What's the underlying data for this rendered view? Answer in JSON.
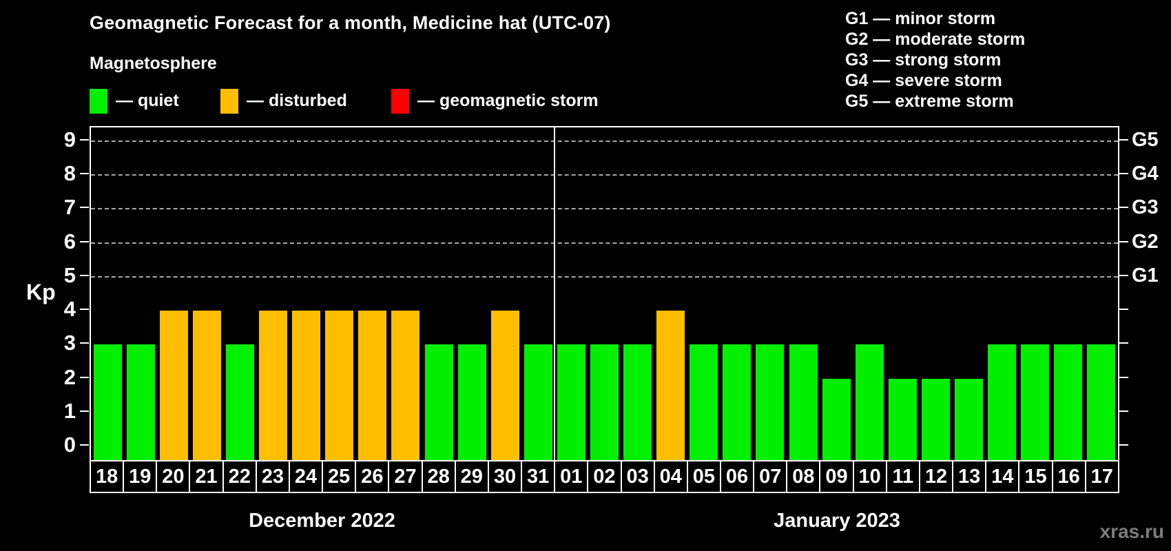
{
  "title": "Geomagnetic Forecast for a month, Medicine hat (UTC-07)",
  "subtitle": "Magnetosphere",
  "legend": {
    "items": [
      {
        "key": "quiet",
        "label": "— quiet",
        "color": "#00f000"
      },
      {
        "key": "disturbed",
        "label": "— disturbed",
        "color": "#ffbe00"
      },
      {
        "key": "storm",
        "label": "— geomagnetic storm",
        "color": "#ff0000"
      }
    ]
  },
  "storm_scale_legend": {
    "lines": [
      "G1 — minor storm",
      "G2 — moderate storm",
      "G3 — strong storm",
      "G4 — severe storm",
      "G5 — extreme storm"
    ]
  },
  "y_axis": {
    "label": "Kp",
    "ticks": [
      0,
      1,
      2,
      3,
      4,
      5,
      6,
      7,
      8,
      9
    ],
    "gridlines": [
      5,
      6,
      7,
      8,
      9
    ]
  },
  "right_axis": {
    "labels": [
      {
        "kp": 9,
        "text": "G5"
      },
      {
        "kp": 8,
        "text": "G4"
      },
      {
        "kp": 7,
        "text": "G3"
      },
      {
        "kp": 6,
        "text": "G2"
      },
      {
        "kp": 5,
        "text": "G1"
      }
    ]
  },
  "months": [
    {
      "name": "December 2022",
      "days": 14
    },
    {
      "name": "January 2023",
      "days": 17
    }
  ],
  "bars": [
    {
      "day": "18",
      "month": "December 2022",
      "kp": 3,
      "status": "quiet"
    },
    {
      "day": "19",
      "month": "December 2022",
      "kp": 3,
      "status": "quiet"
    },
    {
      "day": "20",
      "month": "December 2022",
      "kp": 4,
      "status": "disturbed"
    },
    {
      "day": "21",
      "month": "December 2022",
      "kp": 4,
      "status": "disturbed"
    },
    {
      "day": "22",
      "month": "December 2022",
      "kp": 3,
      "status": "quiet"
    },
    {
      "day": "23",
      "month": "December 2022",
      "kp": 4,
      "status": "disturbed"
    },
    {
      "day": "24",
      "month": "December 2022",
      "kp": 4,
      "status": "disturbed"
    },
    {
      "day": "25",
      "month": "December 2022",
      "kp": 4,
      "status": "disturbed"
    },
    {
      "day": "26",
      "month": "December 2022",
      "kp": 4,
      "status": "disturbed"
    },
    {
      "day": "27",
      "month": "December 2022",
      "kp": 4,
      "status": "disturbed"
    },
    {
      "day": "28",
      "month": "December 2022",
      "kp": 3,
      "status": "quiet"
    },
    {
      "day": "29",
      "month": "December 2022",
      "kp": 3,
      "status": "quiet"
    },
    {
      "day": "30",
      "month": "December 2022",
      "kp": 4,
      "status": "disturbed"
    },
    {
      "day": "31",
      "month": "December 2022",
      "kp": 3,
      "status": "quiet"
    },
    {
      "day": "01",
      "month": "January 2023",
      "kp": 3,
      "status": "quiet"
    },
    {
      "day": "02",
      "month": "January 2023",
      "kp": 3,
      "status": "quiet"
    },
    {
      "day": "03",
      "month": "January 2023",
      "kp": 3,
      "status": "quiet"
    },
    {
      "day": "04",
      "month": "January 2023",
      "kp": 4,
      "status": "disturbed"
    },
    {
      "day": "05",
      "month": "January 2023",
      "kp": 3,
      "status": "quiet"
    },
    {
      "day": "06",
      "month": "January 2023",
      "kp": 3,
      "status": "quiet"
    },
    {
      "day": "07",
      "month": "January 2023",
      "kp": 3,
      "status": "quiet"
    },
    {
      "day": "08",
      "month": "January 2023",
      "kp": 3,
      "status": "quiet"
    },
    {
      "day": "09",
      "month": "January 2023",
      "kp": 2,
      "status": "quiet"
    },
    {
      "day": "10",
      "month": "January 2023",
      "kp": 3,
      "status": "quiet"
    },
    {
      "day": "11",
      "month": "January 2023",
      "kp": 2,
      "status": "quiet"
    },
    {
      "day": "12",
      "month": "January 2023",
      "kp": 2,
      "status": "quiet"
    },
    {
      "day": "13",
      "month": "January 2023",
      "kp": 2,
      "status": "quiet"
    },
    {
      "day": "14",
      "month": "January 2023",
      "kp": 3,
      "status": "quiet"
    },
    {
      "day": "15",
      "month": "January 2023",
      "kp": 3,
      "status": "quiet"
    },
    {
      "day": "16",
      "month": "January 2023",
      "kp": 3,
      "status": "quiet"
    },
    {
      "day": "17",
      "month": "January 2023",
      "kp": 3,
      "status": "quiet"
    }
  ],
  "watermark": "xras.ru",
  "colors": {
    "background": "#000000",
    "axis": "#ffffff",
    "gridline": "#a9a9a9",
    "watermark": "#7d7d7d"
  },
  "chart_data": {
    "type": "bar",
    "title": "Geomagnetic Forecast for a month, Medicine hat (UTC-07)",
    "xlabel": "",
    "ylabel": "Kp",
    "ylim": [
      0,
      9
    ],
    "grid": "horizontal dashed lines at Kp 5,6,7,8,9",
    "legend_position": "top-left",
    "right_axis_labels": {
      "5": "G1",
      "6": "G2",
      "7": "G3",
      "8": "G4",
      "9": "G5"
    },
    "categories": [
      "Dec 18",
      "Dec 19",
      "Dec 20",
      "Dec 21",
      "Dec 22",
      "Dec 23",
      "Dec 24",
      "Dec 25",
      "Dec 26",
      "Dec 27",
      "Dec 28",
      "Dec 29",
      "Dec 30",
      "Dec 31",
      "Jan 01",
      "Jan 02",
      "Jan 03",
      "Jan 04",
      "Jan 05",
      "Jan 06",
      "Jan 07",
      "Jan 08",
      "Jan 09",
      "Jan 10",
      "Jan 11",
      "Jan 12",
      "Jan 13",
      "Jan 14",
      "Jan 15",
      "Jan 16",
      "Jan 17"
    ],
    "values": [
      3,
      3,
      4,
      4,
      3,
      4,
      4,
      4,
      4,
      4,
      3,
      3,
      4,
      3,
      3,
      3,
      3,
      4,
      3,
      3,
      3,
      3,
      2,
      3,
      2,
      2,
      2,
      3,
      3,
      3,
      3
    ],
    "statuses": [
      "quiet",
      "quiet",
      "disturbed",
      "disturbed",
      "quiet",
      "disturbed",
      "disturbed",
      "disturbed",
      "disturbed",
      "disturbed",
      "quiet",
      "quiet",
      "disturbed",
      "quiet",
      "quiet",
      "quiet",
      "quiet",
      "disturbed",
      "quiet",
      "quiet",
      "quiet",
      "quiet",
      "quiet",
      "quiet",
      "quiet",
      "quiet",
      "quiet",
      "quiet",
      "quiet",
      "quiet",
      "quiet"
    ]
  }
}
